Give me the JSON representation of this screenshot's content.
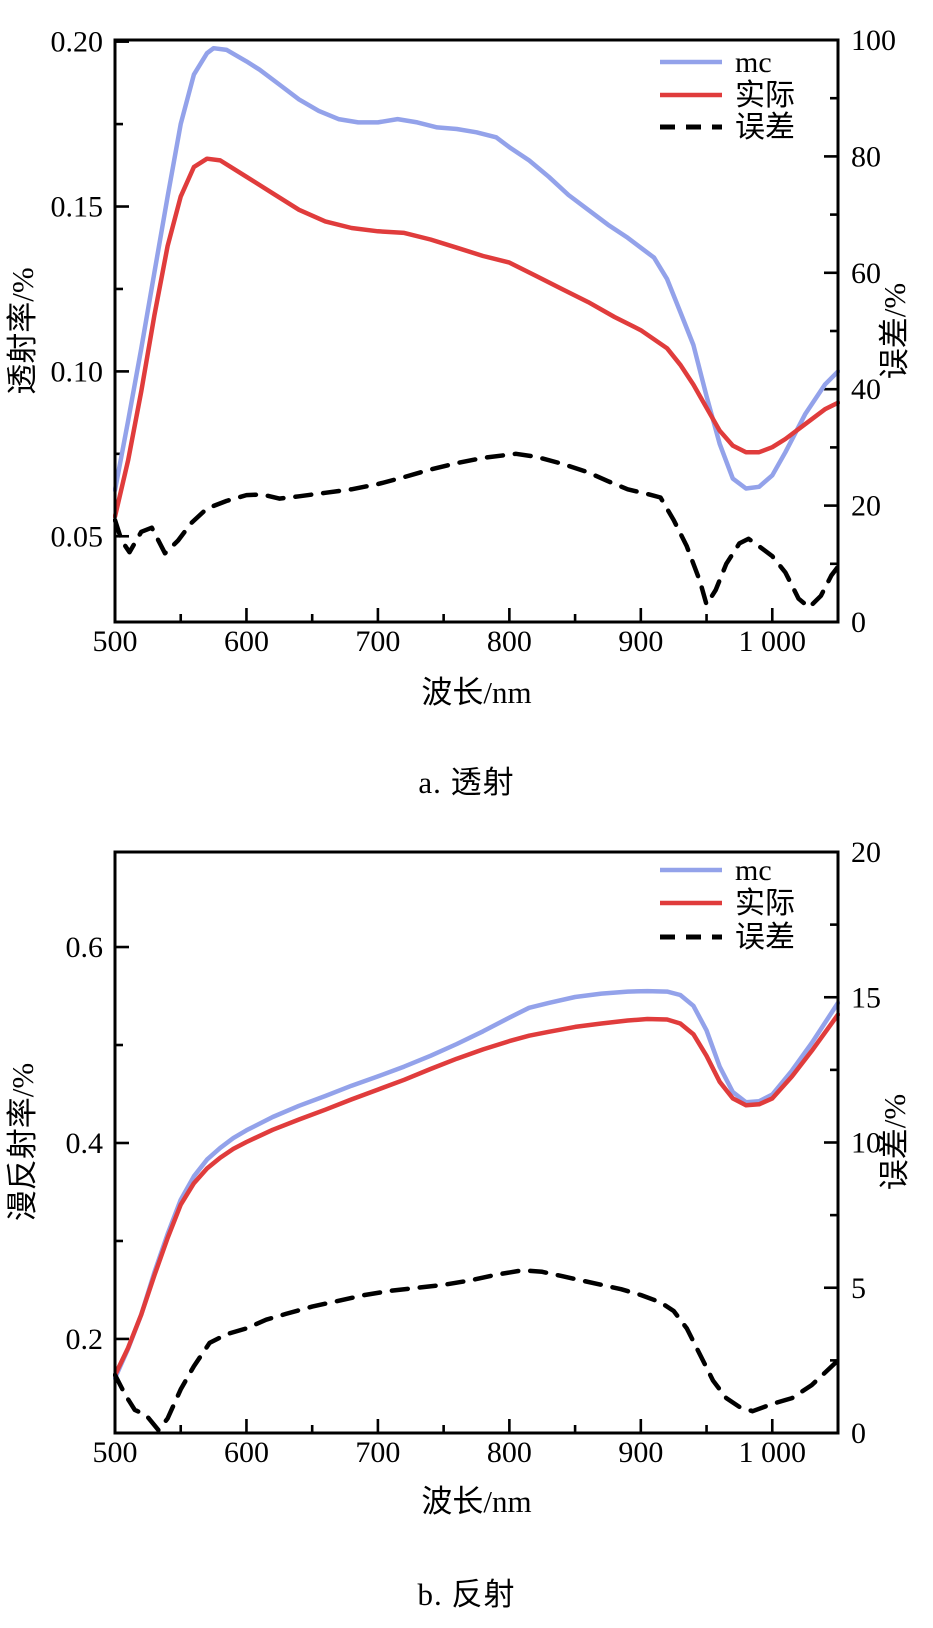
{
  "page": {
    "background": "#ffffff"
  },
  "colors": {
    "mc": "#93A2EA",
    "actual": "#E03C3C",
    "error": "#000000",
    "axis": "#000000"
  },
  "chart_data": [
    {
      "type": "line",
      "caption": "a. 透射",
      "xlabel": "波长/nm",
      "ylabel_left": "透射率/%",
      "ylabel_right": "误差/%",
      "legend_position": "top-right",
      "xlim": [
        500,
        1050
      ],
      "ylim_left": [
        0.024,
        0.2005
      ],
      "ylim_right": [
        0,
        100
      ],
      "x_major_ticks": [
        500,
        600,
        700,
        800,
        900,
        1000
      ],
      "x_major_labels": [
        "500",
        "600",
        "700",
        "800",
        "900",
        "1 000"
      ],
      "x_minor_ticks": [
        550,
        650,
        750,
        850,
        950,
        1050
      ],
      "left_major_ticks": [
        0.05,
        0.1,
        0.15,
        0.2
      ],
      "left_major_labels": [
        "0.05",
        "0.10",
        "0.15",
        "0.20"
      ],
      "left_minor_ticks": [
        0.075,
        0.125,
        0.175
      ],
      "right_major_ticks": [
        0,
        20,
        40,
        60,
        80,
        100
      ],
      "right_major_labels": [
        "0",
        "20",
        "40",
        "60",
        "80",
        "100"
      ],
      "right_minor_ticks": [
        10,
        30,
        50,
        70,
        90
      ],
      "series": [
        {
          "name": "mc",
          "axis": "left",
          "color_key": "mc",
          "style": "solid",
          "x": [
            500,
            510,
            520,
            530,
            540,
            550,
            560,
            570,
            575,
            585,
            600,
            610,
            625,
            640,
            655,
            670,
            685,
            700,
            715,
            730,
            745,
            760,
            775,
            790,
            800,
            815,
            830,
            845,
            860,
            875,
            890,
            900,
            910,
            920,
            930,
            940,
            950,
            960,
            970,
            980,
            990,
            1000,
            1010,
            1025,
            1040,
            1050
          ],
          "y": [
            0.064,
            0.085,
            0.107,
            0.13,
            0.153,
            0.175,
            0.19,
            0.1965,
            0.198,
            0.1975,
            0.194,
            0.1915,
            0.187,
            0.1825,
            0.179,
            0.1765,
            0.1755,
            0.1755,
            0.1765,
            0.1755,
            0.174,
            0.1735,
            0.1725,
            0.171,
            0.168,
            0.164,
            0.159,
            0.1535,
            0.149,
            0.1445,
            0.1405,
            0.1375,
            0.1345,
            0.128,
            0.118,
            0.108,
            0.0925,
            0.078,
            0.0675,
            0.0645,
            0.065,
            0.0685,
            0.0755,
            0.087,
            0.096,
            0.1
          ]
        },
        {
          "name": "实际",
          "axis": "left",
          "color_key": "actual",
          "style": "solid",
          "x": [
            500,
            510,
            520,
            530,
            540,
            550,
            560,
            570,
            580,
            600,
            620,
            640,
            660,
            680,
            700,
            720,
            740,
            760,
            780,
            800,
            820,
            840,
            860,
            880,
            900,
            920,
            930,
            940,
            950,
            960,
            970,
            980,
            990,
            1000,
            1010,
            1025,
            1040,
            1050
          ],
          "y": [
            0.056,
            0.073,
            0.094,
            0.117,
            0.138,
            0.153,
            0.162,
            0.1645,
            0.164,
            0.159,
            0.154,
            0.149,
            0.1455,
            0.1435,
            0.1425,
            0.142,
            0.14,
            0.1375,
            0.135,
            0.133,
            0.129,
            0.125,
            0.121,
            0.1165,
            0.1125,
            0.107,
            0.102,
            0.096,
            0.089,
            0.082,
            0.0775,
            0.0755,
            0.0755,
            0.077,
            0.0795,
            0.084,
            0.0885,
            0.0905
          ]
        },
        {
          "name": "误差",
          "axis": "right",
          "color_key": "error",
          "style": "dashed",
          "x": [
            500,
            505,
            511,
            520,
            528,
            538,
            548,
            558,
            570,
            585,
            600,
            612,
            625,
            640,
            660,
            680,
            700,
            720,
            740,
            760,
            780,
            805,
            820,
            840,
            860,
            875,
            890,
            905,
            915,
            925,
            935,
            945,
            950,
            957,
            965,
            975,
            982,
            990,
            1000,
            1010,
            1020,
            1028,
            1037,
            1045,
            1050
          ],
          "y": [
            17.5,
            14,
            12,
            15.5,
            16.2,
            11.8,
            14,
            17,
            19.5,
            20.8,
            21.8,
            21.9,
            21.2,
            21.6,
            22.2,
            22.8,
            23.7,
            24.9,
            26.2,
            27.3,
            28.2,
            28.9,
            28.4,
            27.2,
            25.7,
            24.2,
            22.8,
            22.0,
            21.4,
            17.5,
            13,
            7,
            3,
            5.5,
            10,
            13.5,
            14.3,
            13,
            11.3,
            8.5,
            4,
            2.5,
            4.5,
            8,
            9.5
          ]
        }
      ]
    },
    {
      "type": "line",
      "caption": "b. 反射",
      "xlabel": "波长/nm",
      "ylabel_left": "漫反射率/%",
      "ylabel_right": "误差/%",
      "legend_position": "top-right",
      "xlim": [
        500,
        1050
      ],
      "ylim_left": [
        0.104,
        0.697
      ],
      "ylim_right": [
        0,
        20
      ],
      "x_major_ticks": [
        500,
        600,
        700,
        800,
        900,
        1000
      ],
      "x_major_labels": [
        "500",
        "600",
        "700",
        "800",
        "900",
        "1 000"
      ],
      "x_minor_ticks": [
        550,
        650,
        750,
        850,
        950,
        1050
      ],
      "left_major_ticks": [
        0.2,
        0.4,
        0.6
      ],
      "left_major_labels": [
        "0.2",
        "0.4",
        "0.6"
      ],
      "left_minor_ticks": [
        0.3,
        0.5
      ],
      "right_major_ticks": [
        0,
        5,
        10,
        15,
        20
      ],
      "right_major_labels": [
        "0",
        "5",
        "10",
        "15",
        "20"
      ],
      "right_minor_ticks": [
        2.5,
        7.5,
        12.5,
        17.5
      ],
      "series": [
        {
          "name": "mc",
          "axis": "left",
          "color_key": "mc",
          "style": "solid",
          "x": [
            500,
            510,
            520,
            530,
            540,
            550,
            560,
            570,
            580,
            590,
            600,
            620,
            640,
            660,
            680,
            700,
            720,
            740,
            760,
            780,
            800,
            815,
            830,
            850,
            870,
            890,
            905,
            920,
            930,
            940,
            950,
            960,
            970,
            980,
            990,
            1000,
            1015,
            1030,
            1050
          ],
          "y": [
            0.16,
            0.19,
            0.225,
            0.268,
            0.307,
            0.342,
            0.366,
            0.383,
            0.395,
            0.405,
            0.413,
            0.4265,
            0.438,
            0.448,
            0.4585,
            0.468,
            0.478,
            0.489,
            0.501,
            0.514,
            0.528,
            0.538,
            0.543,
            0.549,
            0.5525,
            0.5545,
            0.555,
            0.5545,
            0.551,
            0.54,
            0.515,
            0.478,
            0.452,
            0.4415,
            0.4425,
            0.4495,
            0.474,
            0.502,
            0.543
          ]
        },
        {
          "name": "实际",
          "axis": "left",
          "color_key": "actual",
          "style": "solid",
          "x": [
            500,
            510,
            520,
            530,
            540,
            550,
            560,
            570,
            580,
            590,
            600,
            620,
            640,
            660,
            680,
            700,
            720,
            740,
            760,
            780,
            800,
            815,
            830,
            850,
            870,
            890,
            905,
            920,
            930,
            940,
            950,
            960,
            970,
            980,
            990,
            1000,
            1015,
            1030,
            1050
          ],
          "y": [
            0.163,
            0.191,
            0.225,
            0.265,
            0.303,
            0.337,
            0.359,
            0.374,
            0.385,
            0.394,
            0.401,
            0.4135,
            0.424,
            0.434,
            0.4445,
            0.4545,
            0.4645,
            0.4755,
            0.486,
            0.4955,
            0.504,
            0.5095,
            0.5135,
            0.5185,
            0.522,
            0.525,
            0.5265,
            0.526,
            0.522,
            0.511,
            0.489,
            0.4625,
            0.4455,
            0.4385,
            0.4395,
            0.4455,
            0.468,
            0.494,
            0.531
          ]
        },
        {
          "name": "误差",
          "axis": "right",
          "color_key": "error",
          "style": "dashed",
          "x": [
            500,
            508,
            515,
            524,
            533,
            540,
            550,
            560,
            572,
            585,
            600,
            615,
            630,
            650,
            670,
            690,
            710,
            730,
            750,
            770,
            790,
            810,
            825,
            840,
            855,
            870,
            885,
            900,
            915,
            925,
            935,
            945,
            955,
            965,
            975,
            985,
            1000,
            1015,
            1030,
            1050
          ],
          "y": [
            2.0,
            1.3,
            0.8,
            0.6,
            0.1,
            0.5,
            1.5,
            2.3,
            3.1,
            3.4,
            3.6,
            3.9,
            4.1,
            4.35,
            4.55,
            4.75,
            4.9,
            5.0,
            5.1,
            5.25,
            5.45,
            5.6,
            5.55,
            5.4,
            5.25,
            5.1,
            4.95,
            4.75,
            4.5,
            4.2,
            3.6,
            2.7,
            1.8,
            1.2,
            0.9,
            0.75,
            1.0,
            1.2,
            1.65,
            2.5
          ]
        }
      ]
    }
  ]
}
